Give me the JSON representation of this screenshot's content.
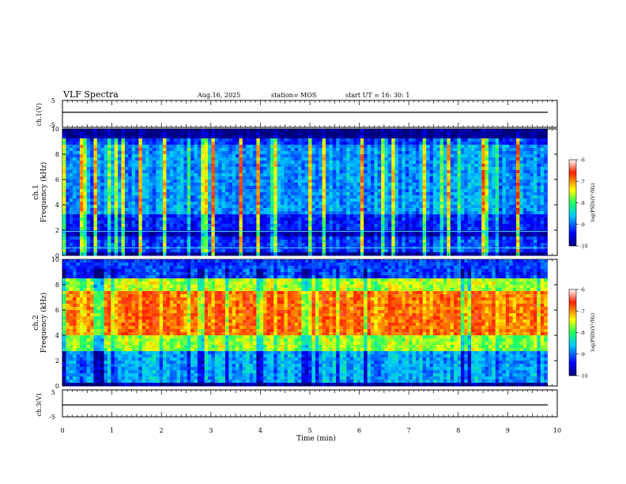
{
  "header": {
    "title": "VLF Spectra",
    "date": "Aug.16, 2025",
    "station": "station= MOS",
    "start": "start  UT  =   16: 30: 1"
  },
  "chart_data": [
    {
      "type": "line",
      "panel": "ch1-waveform",
      "ylabel": "ch.1(V)",
      "ylim": [
        -5,
        5
      ],
      "ytick_labels": [
        "5",
        "-5"
      ],
      "xlim": [
        0,
        10
      ],
      "baseline": 0
    },
    {
      "type": "heatmap",
      "panel": "ch1-spectrogram",
      "ylabel": "ch.1\nFrequency (kHz)",
      "ylabel_lines": [
        "ch.1",
        "Frequency (kHz)"
      ],
      "ylim": [
        0,
        10
      ],
      "yticks": [
        0,
        2,
        4,
        6,
        8,
        10
      ],
      "xlim": [
        0,
        9.8
      ],
      "colorbar": {
        "range": [
          -10,
          -6
        ],
        "ticks": [
          "-6",
          "-7",
          "-8",
          "-9",
          "-10"
        ],
        "label": "log(PSD)(V²/Hz)"
      },
      "bands": [
        {
          "f0": 0.3,
          "f1": 1.6,
          "level": "low-blue"
        },
        {
          "f0": 1.6,
          "f1": 2.0,
          "level": "dark"
        },
        {
          "f0": 2.0,
          "f1": 3.2,
          "level": "blue"
        },
        {
          "f0": 3.2,
          "f1": 8.8,
          "level": "blue-cyan"
        },
        {
          "f0": 8.8,
          "f1": 9.3,
          "level": "blue"
        },
        {
          "f0": 9.3,
          "f1": 10,
          "level": "black"
        }
      ],
      "lines_khz": [
        0.6,
        1.9
      ]
    },
    {
      "type": "heatmap",
      "panel": "ch2-spectrogram",
      "ylabel": "ch.2\nFrequency (kHz)",
      "ylabel_lines": [
        "ch.2",
        "Frequency (kHz)"
      ],
      "ylim": [
        0,
        10
      ],
      "yticks": [
        0,
        2,
        4,
        6,
        8,
        10
      ],
      "xlim": [
        0,
        9.8
      ],
      "colorbar": {
        "range": [
          -10,
          -6
        ],
        "ticks": [
          "-6",
          "-7",
          "-8",
          "-9",
          "-10"
        ],
        "label": "log(PSD)(V²/Hz)"
      },
      "bands": [
        {
          "f0": 0,
          "f1": 2.8,
          "level": "blue-cyan"
        },
        {
          "f0": 2.8,
          "f1": 4.0,
          "level": "green-yellow"
        },
        {
          "f0": 4.0,
          "f1": 7.5,
          "level": "red-orange"
        },
        {
          "f0": 7.5,
          "f1": 8.6,
          "level": "yellow-green"
        },
        {
          "f0": 8.6,
          "f1": 10,
          "level": "blue"
        }
      ]
    },
    {
      "type": "line",
      "panel": "ch3-waveform",
      "ylabel": "ch.3(V)",
      "ylim": [
        -5,
        5
      ],
      "ytick_labels": [
        "5",
        "-5"
      ],
      "xlim": [
        0,
        10
      ],
      "baseline": 0
    }
  ],
  "xaxis": {
    "label": "Time  (min)",
    "ticks": [
      "0",
      "1",
      "2",
      "3",
      "4",
      "5",
      "6",
      "7",
      "8",
      "9",
      "10"
    ],
    "range": [
      0,
      10
    ]
  },
  "colors": {
    "black": "#000000",
    "darkblue": "#00008f",
    "blue": "#0030ff",
    "cyan": "#00d8ff",
    "green": "#30ff80",
    "yellow": "#ffe000",
    "orange": "#ff8000",
    "red": "#ff1a00"
  }
}
